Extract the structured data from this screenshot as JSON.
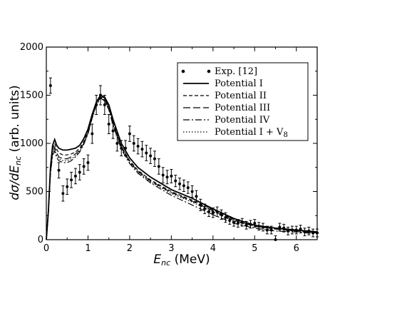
{
  "chart_data": {
    "type": "line",
    "xlabel_main": "E",
    "xlabel_sub": "nc",
    "xlabel_unit": " (MeV)",
    "ylabel_main": "dσ/dE",
    "ylabel_sub": "nc",
    "ylabel_unit": " (arb. units)",
    "xlim": [
      0,
      6.5
    ],
    "ylim": [
      0,
      2000
    ],
    "xticks": [
      0,
      1,
      2,
      3,
      4,
      5,
      6
    ],
    "yticks": [
      0,
      500,
      1000,
      1500,
      2000
    ],
    "grid": false,
    "legend_position": "top-right",
    "legend": [
      "Exp. [12]",
      "Potential I",
      "Potential II",
      "Potential III",
      "Potential IV",
      "Potential I + V"
    ],
    "legend_last_sub": "8",
    "experimental": {
      "name": "Exp. [12]",
      "x": [
        0.1,
        0.3,
        0.4,
        0.5,
        0.6,
        0.7,
        0.8,
        0.9,
        1.0,
        1.1,
        1.2,
        1.3,
        1.4,
        1.5,
        1.6,
        1.7,
        1.8,
        1.9,
        2.0,
        2.1,
        2.2,
        2.3,
        2.4,
        2.5,
        2.6,
        2.7,
        2.8,
        2.9,
        3.0,
        3.1,
        3.2,
        3.3,
        3.4,
        3.5,
        3.6,
        3.7,
        3.8,
        3.9,
        4.0,
        4.1,
        4.2,
        4.3,
        4.4,
        4.5,
        4.6,
        4.7,
        4.8,
        4.9,
        5.0,
        5.1,
        5.2,
        5.3,
        5.4,
        5.5,
        5.6,
        5.7,
        5.8,
        5.9,
        6.0,
        6.1,
        6.2,
        6.3,
        6.4,
        6.5
      ],
      "y": [
        1600,
        720,
        480,
        550,
        620,
        660,
        700,
        760,
        800,
        1100,
        1400,
        1500,
        1400,
        1200,
        1130,
        1000,
        950,
        950,
        1100,
        1000,
        970,
        940,
        900,
        870,
        840,
        760,
        670,
        650,
        660,
        610,
        580,
        560,
        540,
        500,
        450,
        360,
        320,
        290,
        280,
        290,
        260,
        230,
        200,
        180,
        170,
        180,
        150,
        160,
        170,
        140,
        130,
        100,
        100,
        0,
        130,
        120,
        90,
        100,
        100,
        110,
        80,
        90,
        70,
        70
      ],
      "err": [
        80,
        80,
        80,
        80,
        80,
        80,
        80,
        80,
        80,
        100,
        100,
        100,
        100,
        100,
        80,
        80,
        80,
        80,
        80,
        80,
        80,
        80,
        80,
        80,
        80,
        80,
        80,
        70,
        70,
        60,
        60,
        60,
        60,
        60,
        60,
        60,
        50,
        50,
        50,
        50,
        50,
        50,
        40,
        40,
        40,
        40,
        40,
        40,
        40,
        40,
        40,
        40,
        40,
        40,
        40,
        40,
        40,
        40,
        40,
        40,
        40,
        40,
        40,
        40
      ]
    },
    "series": [
      {
        "name": "Potential I",
        "dash": "none",
        "x": [
          0,
          0.05,
          0.1,
          0.15,
          0.2,
          0.25,
          0.3,
          0.4,
          0.5,
          0.6,
          0.7,
          0.8,
          0.9,
          1.0,
          1.1,
          1.2,
          1.3,
          1.4,
          1.5,
          1.6,
          1.8,
          2.0,
          2.2,
          2.5,
          3.0,
          3.5,
          4.0,
          4.5,
          5.0,
          5.5,
          6.0,
          6.5
        ],
        "y": [
          0,
          300,
          750,
          980,
          1040,
          980,
          950,
          930,
          930,
          940,
          950,
          980,
          1050,
          1150,
          1300,
          1430,
          1500,
          1480,
          1400,
          1250,
          1000,
          850,
          750,
          650,
          520,
          430,
          320,
          220,
          150,
          120,
          100,
          80
        ]
      },
      {
        "name": "Potential II",
        "dash": "5,3",
        "x": [
          0,
          0.05,
          0.1,
          0.15,
          0.2,
          0.25,
          0.3,
          0.4,
          0.5,
          0.6,
          0.7,
          0.8,
          0.9,
          1.0,
          1.1,
          1.2,
          1.3,
          1.4,
          1.5,
          1.6,
          1.8,
          2.0,
          2.2,
          2.5,
          3.0,
          3.5,
          4.0,
          4.5,
          5.0,
          5.5,
          6.0,
          6.5
        ],
        "y": [
          0,
          290,
          720,
          940,
          1000,
          940,
          900,
          880,
          880,
          890,
          910,
          950,
          1020,
          1130,
          1290,
          1420,
          1490,
          1470,
          1380,
          1220,
          970,
          820,
          720,
          620,
          500,
          410,
          310,
          210,
          150,
          120,
          100,
          80
        ]
      },
      {
        "name": "Potential III",
        "dash": "10,4",
        "x": [
          0,
          0.05,
          0.1,
          0.15,
          0.2,
          0.25,
          0.3,
          0.4,
          0.5,
          0.6,
          0.7,
          0.8,
          0.9,
          1.0,
          1.1,
          1.2,
          1.3,
          1.4,
          1.5,
          1.6,
          1.8,
          2.0,
          2.2,
          2.5,
          3.0,
          3.5,
          4.0,
          4.5,
          5.0,
          5.5,
          6.0,
          6.5
        ],
        "y": [
          0,
          280,
          700,
          910,
          960,
          900,
          860,
          840,
          840,
          860,
          890,
          930,
          1000,
          1110,
          1270,
          1410,
          1480,
          1460,
          1370,
          1210,
          960,
          810,
          710,
          610,
          490,
          400,
          300,
          200,
          140,
          110,
          90,
          70
        ]
      },
      {
        "name": "Potential IV",
        "dash": "9,3,2,3",
        "x": [
          0,
          0.05,
          0.1,
          0.15,
          0.2,
          0.25,
          0.3,
          0.4,
          0.5,
          0.6,
          0.7,
          0.8,
          0.9,
          1.0,
          1.1,
          1.2,
          1.3,
          1.4,
          1.5,
          1.6,
          1.8,
          2.0,
          2.2,
          2.5,
          3.0,
          3.5,
          4.0,
          4.5,
          5.0,
          5.5,
          6.0,
          6.5
        ],
        "y": [
          0,
          270,
          680,
          880,
          920,
          850,
          820,
          800,
          800,
          820,
          860,
          910,
          990,
          1100,
          1260,
          1400,
          1470,
          1440,
          1350,
          1190,
          940,
          790,
          690,
          590,
          460,
          360,
          260,
          170,
          120,
          90,
          80,
          60
        ]
      },
      {
        "name": "Potential I + V8",
        "dash": "1.5,2.5",
        "x": [
          0,
          0.05,
          0.1,
          0.15,
          0.2,
          0.25,
          0.3,
          0.4,
          0.5,
          0.6,
          0.7,
          0.8,
          0.9,
          1.0,
          1.1,
          1.2,
          1.3,
          1.4,
          1.5,
          1.6,
          1.8,
          2.0,
          2.2,
          2.5,
          3.0,
          3.5,
          4.0,
          4.5,
          5.0,
          5.5,
          6.0,
          6.5
        ],
        "y": [
          0,
          275,
          690,
          900,
          940,
          870,
          840,
          820,
          820,
          840,
          870,
          920,
          1000,
          1110,
          1270,
          1400,
          1480,
          1450,
          1360,
          1200,
          950,
          800,
          700,
          600,
          480,
          390,
          290,
          190,
          140,
          110,
          90,
          70
        ]
      }
    ]
  }
}
